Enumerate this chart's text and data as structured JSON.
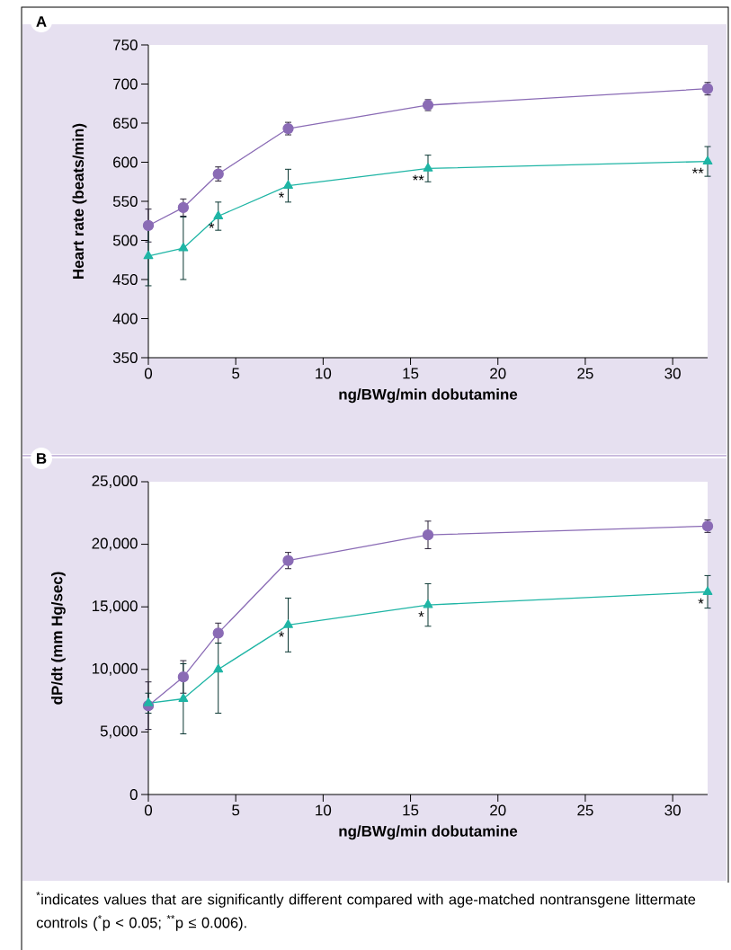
{
  "chart_data": [
    {
      "type": "line",
      "title": "A",
      "xlabel": "ng/BWg/min dobutamine",
      "ylabel": "Heart rate (beats/min)",
      "x": [
        0,
        2,
        4,
        8,
        16,
        32
      ],
      "xlim": [
        0,
        32
      ],
      "ylim": [
        350,
        750
      ],
      "xticks": [
        0,
        5,
        10,
        15,
        20,
        25,
        30
      ],
      "yticks": [
        350,
        400,
        450,
        500,
        550,
        600,
        650,
        700,
        750
      ],
      "series": [
        {
          "color": "#8a6bb5",
          "marker": "circle",
          "values": [
            519,
            542,
            585,
            643,
            673,
            694
          ],
          "errors": [
            21,
            11,
            9,
            8,
            7,
            8
          ]
        },
        {
          "color": "#1fb5a5",
          "marker": "triangle",
          "values": [
            480,
            490,
            531,
            570,
            592,
            601
          ],
          "errors": [
            38,
            40,
            18,
            21,
            17,
            19
          ]
        }
      ],
      "annotations": [
        {
          "text": "*",
          "x": 4,
          "y": 531
        },
        {
          "text": "*",
          "x": 8,
          "y": 570
        },
        {
          "text": "**",
          "x": 16,
          "y": 592
        },
        {
          "text": "**",
          "x": 32,
          "y": 601
        }
      ]
    },
    {
      "type": "line",
      "title": "B",
      "xlabel": "ng/BWg/min dobutamine",
      "ylabel": "dP/dt (mm Hg/sec)",
      "x": [
        0,
        2,
        4,
        8,
        16,
        32
      ],
      "xlim": [
        0,
        32
      ],
      "ylim": [
        0,
        25000
      ],
      "xticks": [
        0,
        5,
        10,
        15,
        20,
        25,
        30
      ],
      "yticks": [
        0,
        {
          "value": 5000,
          "label": "5,000"
        },
        {
          "value": 10000,
          "label": "10,000"
        },
        {
          "value": 15000,
          "label": "15,000"
        },
        {
          "value": 20000,
          "label": "20,000"
        },
        {
          "value": 25000,
          "label": "25,000"
        }
      ],
      "series": [
        {
          "color": "#8a6bb5",
          "marker": "circle",
          "values": [
            7100,
            9400,
            12900,
            18700,
            20750,
            21450
          ],
          "errors": [
            1900,
            1300,
            800,
            650,
            1100,
            500
          ]
        },
        {
          "color": "#1fb5a5",
          "marker": "triangle",
          "values": [
            7300,
            7650,
            10000,
            13550,
            15150,
            16200
          ],
          "errors": [
            800,
            2800,
            [
              6500,
              12100
            ],
            2150,
            1700,
            1300
          ]
        }
      ],
      "annotations": [
        {
          "text": "*",
          "x": 8,
          "y": 13550
        },
        {
          "text": "*",
          "x": 16,
          "y": 15150
        },
        {
          "text": "*",
          "x": 32,
          "y": 16200
        },
        "$^{*}$indicates values that are significantly different compared with age-matched nontransgene littermate controls ($^{*}$p < 0.05; $^{**}$p ≤ 0.006)."
      ]
    }
  ]
}
